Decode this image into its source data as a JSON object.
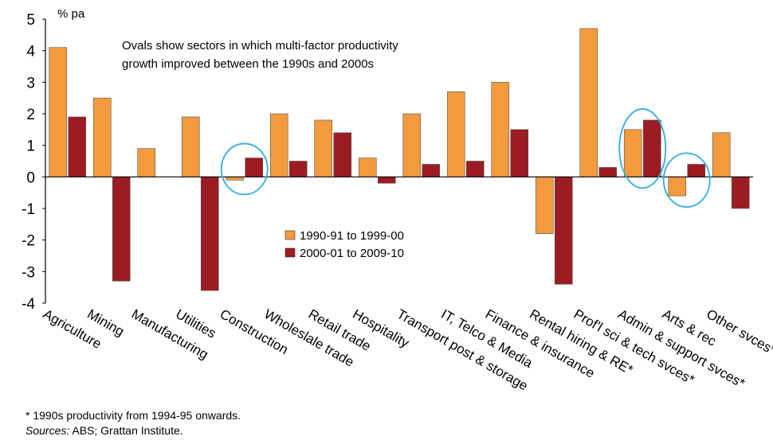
{
  "chart_data": {
    "type": "bar",
    "title": "",
    "ylabel": "% pa",
    "xlabel": "",
    "ylim": [
      -4,
      5
    ],
    "yticks": [
      5,
      4,
      3,
      2,
      1,
      0,
      -1,
      -2,
      -3,
      -4
    ],
    "categories": [
      "Agriculture",
      "Mining",
      "Manufacturing",
      "Utilities",
      "Construction",
      "Wholeslale trade",
      "Retail trade",
      "Hospitality",
      "Transport post & storage",
      "IT, Telco & Media",
      "Finance & insurance",
      "Rental hiring & RE*",
      "Prof'l sci & tech svces*",
      "Admin & support svces*",
      "Arts & rec",
      "Other svces*"
    ],
    "series": [
      {
        "name": "1990-91 to 1999-00",
        "color": "#f39a3f",
        "values": [
          4.1,
          2.5,
          0.9,
          1.9,
          -0.1,
          2.0,
          1.8,
          0.6,
          2.0,
          2.7,
          3.0,
          -1.8,
          4.7,
          1.5,
          -0.6,
          1.4
        ]
      },
      {
        "name": "2000-01 to 2009-10",
        "color": "#9b1c22",
        "values": [
          1.9,
          -3.3,
          0.0,
          -3.6,
          0.6,
          0.5,
          1.4,
          -0.2,
          0.4,
          0.5,
          1.5,
          -3.4,
          0.3,
          1.8,
          0.4,
          -1.0
        ]
      }
    ],
    "annotation": [
      "Ovals show sectors in which multi-factor productivity",
      "growth improved between the 1990s and 2000s"
    ],
    "highlighted_categories": [
      "Construction",
      "Admin & support svces*",
      "Arts & rec"
    ],
    "oval_color": "#32aee0",
    "legend_position": "center"
  },
  "footnote": "* 1990s productivity from 1994-95 onwards.",
  "sources_label": "Sources:",
  "sources_text": " ABS; Grattan Institute."
}
